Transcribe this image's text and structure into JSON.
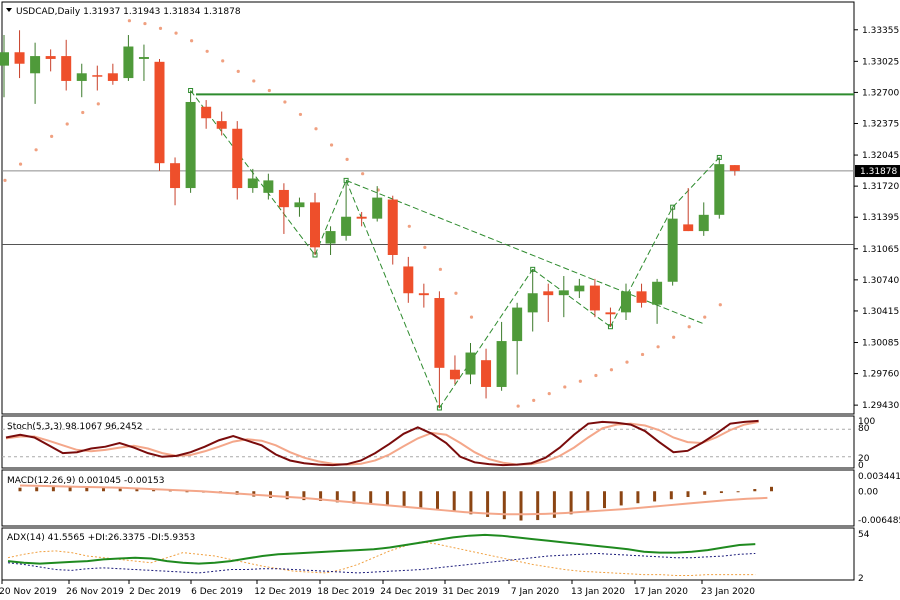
{
  "header": {
    "text": "USDCAD,Daily  1.31937 1.31943 1.31834 1.31878"
  },
  "chart_data": {
    "type": "candlestick",
    "symbol": "USDCAD",
    "timeframe": "Daily",
    "last_price": "1.31878",
    "price_ticks": [
      "1.33355",
      "1.33025",
      "1.32700",
      "1.32375",
      "1.32045",
      "1.31720",
      "1.31395",
      "1.31065",
      "1.30740",
      "1.30415",
      "1.30085",
      "1.29760",
      "1.29430"
    ],
    "x_labels": [
      "20 Nov 2019",
      "26 Nov 2019",
      "2 Dec 2019",
      "6 Dec 2019",
      "12 Dec 2019",
      "18 Dec 2019",
      "24 Dec 2019",
      "31 Dec 2019",
      "7 Jan 2020",
      "13 Jan 2020",
      "17 Jan 2020",
      "23 Jan 2020"
    ],
    "horizontal_levels": [
      {
        "price": 1.3268,
        "color": "#2e8b2e"
      },
      {
        "price": 1.3188,
        "color": "#8c8c8c"
      },
      {
        "price": 1.3111,
        "color": "#555555"
      }
    ],
    "candles": [
      {
        "o": 1.3298,
        "h": 1.333,
        "l": 1.3265,
        "c": 1.3312
      },
      {
        "o": 1.3312,
        "h": 1.3335,
        "l": 1.3285,
        "c": 1.33
      },
      {
        "o": 1.329,
        "h": 1.3322,
        "l": 1.3258,
        "c": 1.3308
      },
      {
        "o": 1.3308,
        "h": 1.3315,
        "l": 1.3292,
        "c": 1.3305
      },
      {
        "o": 1.3308,
        "h": 1.3325,
        "l": 1.3272,
        "c": 1.3282
      },
      {
        "o": 1.3282,
        "h": 1.33,
        "l": 1.3265,
        "c": 1.329
      },
      {
        "o": 1.3288,
        "h": 1.3298,
        "l": 1.3272,
        "c": 1.3287
      },
      {
        "o": 1.329,
        "h": 1.33,
        "l": 1.3278,
        "c": 1.3282
      },
      {
        "o": 1.3285,
        "h": 1.333,
        "l": 1.3282,
        "c": 1.3318
      },
      {
        "o": 1.3305,
        "h": 1.332,
        "l": 1.3282,
        "c": 1.3307
      },
      {
        "o": 1.3302,
        "h": 1.3305,
        "l": 1.3188,
        "c": 1.3196
      },
      {
        "o": 1.3196,
        "h": 1.3202,
        "l": 1.3152,
        "c": 1.317
      },
      {
        "o": 1.317,
        "h": 1.3272,
        "l": 1.3165,
        "c": 1.326
      },
      {
        "o": 1.3255,
        "h": 1.3262,
        "l": 1.3232,
        "c": 1.3243
      },
      {
        "o": 1.324,
        "h": 1.325,
        "l": 1.3225,
        "c": 1.3232
      },
      {
        "o": 1.3232,
        "h": 1.324,
        "l": 1.3158,
        "c": 1.317
      },
      {
        "o": 1.317,
        "h": 1.319,
        "l": 1.3165,
        "c": 1.318
      },
      {
        "o": 1.3165,
        "h": 1.3185,
        "l": 1.3158,
        "c": 1.3178
      },
      {
        "o": 1.3168,
        "h": 1.3175,
        "l": 1.3122,
        "c": 1.315
      },
      {
        "o": 1.315,
        "h": 1.316,
        "l": 1.314,
        "c": 1.3155
      },
      {
        "o": 1.3155,
        "h": 1.3165,
        "l": 1.31,
        "c": 1.3108
      },
      {
        "o": 1.3112,
        "h": 1.313,
        "l": 1.31,
        "c": 1.3125
      },
      {
        "o": 1.312,
        "h": 1.3175,
        "l": 1.3115,
        "c": 1.314
      },
      {
        "o": 1.314,
        "h": 1.3145,
        "l": 1.313,
        "c": 1.3138
      },
      {
        "o": 1.3138,
        "h": 1.3172,
        "l": 1.3135,
        "c": 1.316
      },
      {
        "o": 1.3158,
        "h": 1.3162,
        "l": 1.309,
        "c": 1.31
      },
      {
        "o": 1.3088,
        "h": 1.3098,
        "l": 1.305,
        "c": 1.306
      },
      {
        "o": 1.306,
        "h": 1.307,
        "l": 1.3045,
        "c": 1.3058
      },
      {
        "o": 1.3055,
        "h": 1.3062,
        "l": 1.294,
        "c": 1.2982
      },
      {
        "o": 1.298,
        "h": 1.2995,
        "l": 1.2965,
        "c": 1.297
      },
      {
        "o": 1.2975,
        "h": 1.3008,
        "l": 1.2965,
        "c": 1.2998
      },
      {
        "o": 1.299,
        "h": 1.3002,
        "l": 1.295,
        "c": 1.2962
      },
      {
        "o": 1.2962,
        "h": 1.303,
        "l": 1.2958,
        "c": 1.301
      },
      {
        "o": 1.301,
        "h": 1.305,
        "l": 1.2975,
        "c": 1.3045
      },
      {
        "o": 1.304,
        "h": 1.3085,
        "l": 1.302,
        "c": 1.306
      },
      {
        "o": 1.3062,
        "h": 1.307,
        "l": 1.303,
        "c": 1.3058
      },
      {
        "o": 1.3058,
        "h": 1.3078,
        "l": 1.3035,
        "c": 1.3063
      },
      {
        "o": 1.3062,
        "h": 1.3075,
        "l": 1.3055,
        "c": 1.3068
      },
      {
        "o": 1.3068,
        "h": 1.3075,
        "l": 1.3035,
        "c": 1.3042
      },
      {
        "o": 1.304,
        "h": 1.3045,
        "l": 1.3025,
        "c": 1.3038
      },
      {
        "o": 1.304,
        "h": 1.307,
        "l": 1.3032,
        "c": 1.3062
      },
      {
        "o": 1.3062,
        "h": 1.307,
        "l": 1.3045,
        "c": 1.305
      },
      {
        "o": 1.3048,
        "h": 1.3075,
        "l": 1.3028,
        "c": 1.3072
      },
      {
        "o": 1.3072,
        "h": 1.315,
        "l": 1.3068,
        "c": 1.3138
      },
      {
        "o": 1.3132,
        "h": 1.317,
        "l": 1.3125,
        "c": 1.3125
      },
      {
        "o": 1.3125,
        "h": 1.3155,
        "l": 1.312,
        "c": 1.3142
      },
      {
        "o": 1.3142,
        "h": 1.3202,
        "l": 1.3138,
        "c": 1.3195
      },
      {
        "o": 1.3194,
        "h": 1.3194,
        "l": 1.3183,
        "c": 1.3188
      }
    ],
    "zigzag": [
      {
        "i": 12,
        "p": 1.3272
      },
      {
        "i": 20,
        "p": 1.31
      },
      {
        "i": 22,
        "p": 1.3178
      },
      {
        "i": 28,
        "p": 1.294
      },
      {
        "i": 34,
        "p": 1.3085
      },
      {
        "i": 39,
        "p": 1.3025
      },
      {
        "i": 43,
        "p": 1.315
      },
      {
        "i": 46,
        "p": 1.3202
      }
    ],
    "trendline": [
      {
        "i": 22,
        "p": 1.3178
      },
      {
        "i": 45,
        "p": 1.3028
      }
    ],
    "parabolic_sar": [
      {
        "i": 0,
        "p": 1.3178
      },
      {
        "i": 1,
        "p": 1.3195
      },
      {
        "i": 2,
        "p": 1.321
      },
      {
        "i": 3,
        "p": 1.3224
      },
      {
        "i": 4,
        "p": 1.3237
      },
      {
        "i": 5,
        "p": 1.3249
      },
      {
        "i": 6,
        "p": 1.3258
      },
      {
        "i": 8,
        "p": 1.3345
      },
      {
        "i": 9,
        "p": 1.3342
      },
      {
        "i": 10,
        "p": 1.3337
      },
      {
        "i": 11,
        "p": 1.3332
      },
      {
        "i": 12,
        "p": 1.3324
      },
      {
        "i": 13,
        "p": 1.3313
      },
      {
        "i": 14,
        "p": 1.3303
      },
      {
        "i": 15,
        "p": 1.3292
      },
      {
        "i": 16,
        "p": 1.3282
      },
      {
        "i": 17,
        "p": 1.3272
      },
      {
        "i": 18,
        "p": 1.326
      },
      {
        "i": 19,
        "p": 1.3247
      },
      {
        "i": 20,
        "p": 1.3232
      },
      {
        "i": 21,
        "p": 1.3215
      },
      {
        "i": 22,
        "p": 1.32
      },
      {
        "i": 23,
        "p": 1.3185
      },
      {
        "i": 24,
        "p": 1.3168
      },
      {
        "i": 25,
        "p": 1.315
      },
      {
        "i": 26,
        "p": 1.313
      },
      {
        "i": 27,
        "p": 1.3108
      },
      {
        "i": 28,
        "p": 1.3085
      },
      {
        "i": 29,
        "p": 1.306
      },
      {
        "i": 30,
        "p": 1.3035
      },
      {
        "i": 33,
        "p": 1.2942
      },
      {
        "i": 34,
        "p": 1.2948
      },
      {
        "i": 35,
        "p": 1.2955
      },
      {
        "i": 36,
        "p": 1.2962
      },
      {
        "i": 37,
        "p": 1.2968
      },
      {
        "i": 38,
        "p": 1.2974
      },
      {
        "i": 39,
        "p": 1.298
      },
      {
        "i": 40,
        "p": 1.2988
      },
      {
        "i": 41,
        "p": 1.2996
      },
      {
        "i": 42,
        "p": 1.3004
      },
      {
        "i": 43,
        "p": 1.3014
      },
      {
        "i": 44,
        "p": 1.3025
      },
      {
        "i": 45,
        "p": 1.3035
      },
      {
        "i": 46,
        "p": 1.3048
      }
    ],
    "stoch": {
      "label": "Stoch(5,3,3) 98.1067 96.2452",
      "levels": [
        "100",
        "80",
        "20",
        "0"
      ],
      "main": [
        62,
        68,
        62,
        45,
        28,
        30,
        38,
        42,
        50,
        40,
        28,
        20,
        22,
        30,
        42,
        56,
        65,
        55,
        45,
        25,
        12,
        6,
        3,
        2,
        4,
        12,
        28,
        48,
        70,
        84,
        70,
        50,
        20,
        8,
        4,
        2,
        3,
        6,
        18,
        40,
        68,
        92,
        96,
        94,
        90,
        76,
        52,
        30,
        33,
        50,
        70,
        92,
        96,
        98
      ],
      "signal": [
        60,
        64,
        64,
        55,
        45,
        35,
        32,
        35,
        40,
        44,
        38,
        28,
        22,
        24,
        32,
        42,
        53,
        58,
        55,
        45,
        30,
        18,
        10,
        5,
        3,
        5,
        12,
        25,
        43,
        60,
        72,
        68,
        50,
        30,
        15,
        7,
        3,
        4,
        10,
        22,
        40,
        62,
        82,
        90,
        92,
        88,
        78,
        62,
        52,
        50,
        62,
        78,
        90,
        96
      ]
    },
    "macd": {
      "label": "MACD(12,26,9) 0.001045 -0.00153",
      "levels": [
        "0.003441",
        "0.00",
        "-0.006485"
      ],
      "hist": [
        0.0008,
        0.0009,
        0.001,
        0.0011,
        0.0009,
        0.0008,
        0.0006,
        0.0005,
        0.0003,
        0.0002,
        -0.0001,
        -0.0003,
        -0.0005,
        -0.0008,
        -0.0012,
        -0.0015,
        -0.0018,
        -0.002,
        -0.0022,
        -0.0025,
        -0.0028,
        -0.003,
        -0.0033,
        -0.0035,
        -0.0037,
        -0.004,
        -0.0045,
        -0.0052,
        -0.0058,
        -0.0063,
        -0.0066,
        -0.0065,
        -0.006,
        -0.0052,
        -0.0045,
        -0.0038,
        -0.0032,
        -0.0027,
        -0.0023,
        -0.0018,
        -0.0013,
        -0.0008,
        -0.0004,
        0.0,
        0.0005,
        0.001
      ],
      "signal": [
        0.0013,
        0.0012,
        0.0011,
        0.001,
        0.0009,
        0.0008,
        0.0006,
        0.0004,
        0.0002,
        0.0,
        -0.0003,
        -0.0006,
        -0.0009,
        -0.0012,
        -0.0015,
        -0.0019,
        -0.0023,
        -0.0027,
        -0.0031,
        -0.0035,
        -0.0039,
        -0.0043,
        -0.0047,
        -0.005,
        -0.0052,
        -0.0052,
        -0.0051,
        -0.0049,
        -0.0046,
        -0.0043,
        -0.004,
        -0.0036,
        -0.0032,
        -0.0028,
        -0.0024,
        -0.002,
        -0.0017,
        -0.0015
      ]
    },
    "adx": {
      "label": "ADX(14) 41.5565 +DI:26.3375 -DI:5.9353",
      "levels": [
        "54",
        "2"
      ],
      "adx": [
        22,
        20,
        19,
        20,
        21,
        22,
        24,
        25,
        26,
        25,
        22,
        20,
        19,
        20,
        22,
        25,
        28,
        30,
        31,
        32,
        33,
        34,
        35,
        36,
        38,
        41,
        44,
        47,
        50,
        52,
        53,
        52,
        50,
        48,
        46,
        44,
        42,
        40,
        38,
        36,
        33,
        32,
        32,
        33,
        35,
        38,
        41,
        42
      ],
      "plus_di": [
        20,
        18,
        15,
        12,
        11,
        13,
        14,
        13,
        12,
        11,
        10,
        9,
        8,
        10,
        12,
        12,
        13,
        13,
        12,
        11,
        10,
        9,
        8,
        9,
        10,
        11,
        12,
        14,
        16,
        18,
        20,
        22,
        24,
        26,
        28,
        29,
        30,
        31,
        30,
        29,
        28,
        27,
        26,
        26,
        27,
        28,
        30,
        31
      ],
      "minus_di": [
        26,
        30,
        33,
        34,
        32,
        28,
        26,
        24,
        22,
        20,
        26,
        32,
        30,
        28,
        24,
        20,
        16,
        13,
        10,
        9,
        8,
        12,
        18,
        26,
        34,
        40,
        45,
        42,
        38,
        34,
        30,
        26,
        22,
        18,
        15,
        12,
        10,
        9,
        8,
        7,
        6,
        6,
        5,
        5,
        6,
        6,
        6,
        6
      ]
    }
  }
}
